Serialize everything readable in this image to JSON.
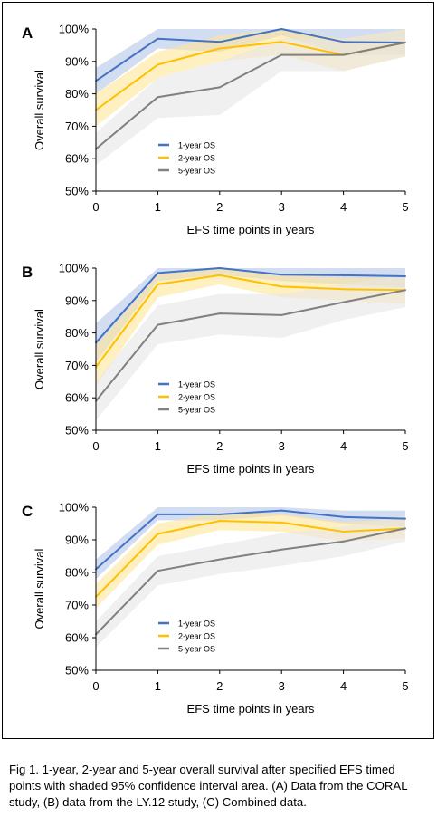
{
  "chart_data": [
    {
      "type": "line",
      "panel_label": "A",
      "xlabel": "EFS time points in years",
      "ylabel": "Overall survival",
      "x": [
        0,
        1,
        2,
        3,
        4,
        5
      ],
      "xticks": [
        "0",
        "1",
        "2",
        "3",
        "4",
        "5"
      ],
      "yticks": [
        "50%",
        "60%",
        "70%",
        "80%",
        "90%",
        "100%"
      ],
      "xlim": [
        0,
        5
      ],
      "ylim": [
        50,
        100
      ],
      "grid": false,
      "legend_position": "inside-lower-left",
      "series": [
        {
          "name": "1-year OS",
          "color": "#4472C4",
          "band_color": "#B4C7E7",
          "values": [
            84,
            97,
            96,
            100,
            96,
            95.8
          ],
          "lower": [
            80,
            94,
            93,
            98,
            92,
            92
          ],
          "upper": [
            88,
            100,
            100,
            100,
            100,
            100
          ]
        },
        {
          "name": "2-year OS",
          "color": "#FFC000",
          "band_color": "#FFE699",
          "values": [
            75,
            89,
            94,
            96,
            92,
            95.8
          ],
          "lower": [
            70,
            85,
            90,
            92,
            87,
            91.5
          ],
          "upper": [
            80,
            93,
            98,
            100,
            97,
            100
          ]
        },
        {
          "name": "5-year OS",
          "color": "#808080",
          "band_color": "#E7E6E6",
          "values": [
            63,
            79,
            82,
            92,
            92,
            95.8
          ],
          "lower": [
            58,
            72.5,
            73.5,
            87,
            87,
            91.5
          ],
          "upper": [
            68,
            85,
            90,
            97,
            97,
            100
          ]
        }
      ]
    },
    {
      "type": "line",
      "panel_label": "B",
      "xlabel": "EFS time points in years",
      "ylabel": "Overall survival",
      "x": [
        0,
        1,
        2,
        3,
        4,
        5
      ],
      "xticks": [
        "0",
        "1",
        "2",
        "3",
        "4",
        "5"
      ],
      "yticks": [
        "50%",
        "60%",
        "70%",
        "80%",
        "90%",
        "100%"
      ],
      "xlim": [
        0,
        5
      ],
      "ylim": [
        50,
        100
      ],
      "grid": false,
      "legend_position": "inside-lower-left",
      "series": [
        {
          "name": "1-year OS",
          "color": "#4472C4",
          "band_color": "#B4C7E7",
          "values": [
            77,
            98.5,
            100,
            98,
            97.8,
            97.5
          ],
          "lower": [
            71,
            96,
            98,
            96,
            95,
            94
          ],
          "upper": [
            83,
            100,
            100,
            100,
            100,
            100
          ]
        },
        {
          "name": "2-year OS",
          "color": "#FFC000",
          "band_color": "#FFE699",
          "values": [
            69.5,
            95,
            97.8,
            94.3,
            93.5,
            93.2
          ],
          "lower": [
            63.5,
            91,
            95,
            91,
            90,
            89
          ],
          "upper": [
            76,
            98,
            100,
            98,
            97,
            97
          ]
        },
        {
          "name": "5-year OS",
          "color": "#808080",
          "band_color": "#E7E6E6",
          "values": [
            59,
            82.5,
            86,
            85.5,
            89.5,
            93.2
          ],
          "lower": [
            53,
            76.5,
            79.5,
            78.5,
            84,
            88
          ],
          "upper": [
            65,
            88.5,
            92,
            92,
            95,
            98
          ]
        }
      ]
    },
    {
      "type": "line",
      "panel_label": "C",
      "xlabel": "EFS time points in years",
      "ylabel": "Overall survival",
      "x": [
        0,
        1,
        2,
        3,
        4,
        5
      ],
      "xticks": [
        "0",
        "1",
        "2",
        "3",
        "4",
        "5"
      ],
      "yticks": [
        "50%",
        "60%",
        "70%",
        "80%",
        "90%",
        "100%"
      ],
      "xlim": [
        0,
        5
      ],
      "ylim": [
        50,
        100
      ],
      "grid": false,
      "legend_position": "inside-lower-left",
      "series": [
        {
          "name": "1-year OS",
          "color": "#4472C4",
          "band_color": "#B4C7E7",
          "values": [
            81,
            97.8,
            97.8,
            99,
            97,
            96.5
          ],
          "lower": [
            78,
            96,
            96,
            97.5,
            95,
            94
          ],
          "upper": [
            84,
            100,
            100,
            100,
            99,
            99
          ]
        },
        {
          "name": "2-year OS",
          "color": "#FFC000",
          "band_color": "#FFE699",
          "values": [
            72.5,
            91.8,
            95.8,
            95.3,
            92.5,
            93.5
          ],
          "lower": [
            69,
            88.5,
            93,
            92.5,
            89.5,
            90.5
          ],
          "upper": [
            76.5,
            95,
            98.5,
            98,
            95.5,
            96.5
          ]
        },
        {
          "name": "5-year OS",
          "color": "#808080",
          "band_color": "#E7E6E6",
          "values": [
            61,
            80.5,
            84,
            87,
            89.5,
            93.5
          ],
          "lower": [
            57,
            76,
            79.5,
            82,
            85,
            89.5
          ],
          "upper": [
            65,
            85,
            88.5,
            92,
            94,
            97.5
          ]
        }
      ]
    }
  ],
  "caption": "Fig 1. 1-year, 2-year and 5-year overall survival after specified EFS timed points with shaded 95% confidence interval area. (A) Data from the CORAL study, (B) data from the LY.12 study, (C) Combined data."
}
